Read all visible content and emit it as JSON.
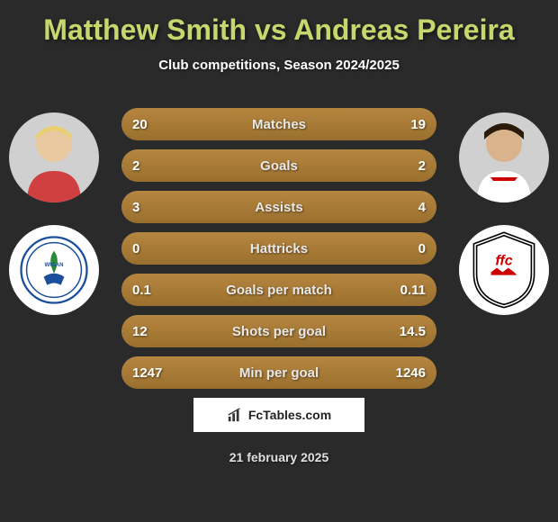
{
  "title": "Matthew Smith vs Andreas Pereira",
  "subtitle": "Club competitions, Season 2024/2025",
  "date": "21 february 2025",
  "source": "FcTables.com",
  "colors": {
    "title": "#c5d86d",
    "bar_fill": "#b5863f",
    "bar_bg": "#555555",
    "page_bg": "#2a2a2a"
  },
  "player_left": {
    "name": "Matthew Smith",
    "club": "Wigan Athletic",
    "club_primary": "#1b4f9c",
    "club_secondary": "#ffffff"
  },
  "player_right": {
    "name": "Andreas Pereira",
    "club": "Fulham",
    "club_primary": "#ffffff",
    "club_secondary": "#000000",
    "club_accent": "#cc0000"
  },
  "stats": [
    {
      "label": "Matches",
      "left_val": "20",
      "right_val": "19",
      "left_pct": 51,
      "right_pct": 49
    },
    {
      "label": "Goals",
      "left_val": "2",
      "right_val": "2",
      "left_pct": 50,
      "right_pct": 50
    },
    {
      "label": "Assists",
      "left_val": "3",
      "right_val": "4",
      "left_pct": 43,
      "right_pct": 57
    },
    {
      "label": "Hattricks",
      "left_val": "0",
      "right_val": "0",
      "left_pct": 50,
      "right_pct": 50
    },
    {
      "label": "Goals per match",
      "left_val": "0.1",
      "right_val": "0.11",
      "left_pct": 48,
      "right_pct": 52
    },
    {
      "label": "Shots per goal",
      "left_val": "12",
      "right_val": "14.5",
      "left_pct": 45,
      "right_pct": 55
    },
    {
      "label": "Min per goal",
      "left_val": "1247",
      "right_val": "1246",
      "left_pct": 50,
      "right_pct": 50
    }
  ]
}
